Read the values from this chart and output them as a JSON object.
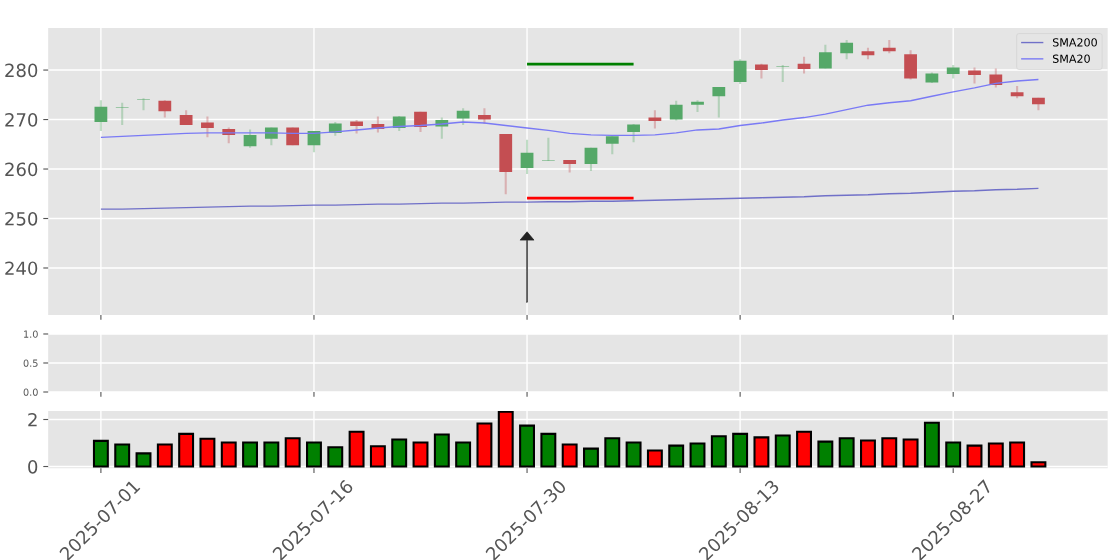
{
  "chart_data": [
    {
      "type": "candlestick",
      "categories": [
        "2025-07-01",
        null,
        null,
        null,
        null,
        null,
        null,
        null,
        null,
        null,
        "2025-07-16",
        null,
        null,
        null,
        null,
        null,
        null,
        null,
        null,
        null,
        "2025-07-30",
        null,
        null,
        null,
        null,
        null,
        null,
        null,
        null,
        null,
        "2025-08-13",
        null,
        null,
        null,
        null,
        null,
        null,
        null,
        null,
        null,
        "2025-08-27",
        null,
        null,
        null,
        null
      ],
      "ohlc": [
        [
          269.5,
          273.9,
          267.7,
          272.6
        ],
        [
          272.4,
          273.4,
          268.9,
          272.5
        ],
        [
          274.0,
          274.3,
          271.9,
          274.1
        ],
        [
          273.8,
          273.9,
          270.4,
          271.7
        ],
        [
          270.9,
          271.9,
          268.9,
          268.9
        ],
        [
          269.4,
          270.6,
          266.4,
          268.3
        ],
        [
          268.1,
          268.4,
          265.2,
          266.9
        ],
        [
          264.6,
          268.0,
          264.3,
          266.9
        ],
        [
          266.1,
          268.4,
          264.8,
          268.4
        ],
        [
          268.4,
          268.4,
          264.8,
          264.8
        ],
        [
          264.8,
          267.7,
          263.4,
          267.7
        ],
        [
          267.3,
          269.5,
          266.7,
          269.2
        ],
        [
          269.6,
          269.9,
          267.2,
          268.7
        ],
        [
          269.1,
          270.6,
          267.4,
          268.1
        ],
        [
          268.3,
          270.7,
          267.7,
          270.6
        ],
        [
          271.6,
          271.6,
          267.5,
          268.5
        ],
        [
          268.6,
          270.4,
          266.1,
          269.9
        ],
        [
          270.2,
          272.3,
          268.9,
          271.8
        ],
        [
          270.9,
          272.3,
          269.1,
          270.0
        ],
        [
          267.1,
          267.1,
          254.9,
          259.4
        ],
        [
          260.2,
          265.9,
          259.0,
          263.3
        ],
        [
          261.7,
          266.3,
          261.6,
          261.8
        ],
        [
          261.8,
          261.8,
          259.3,
          261.0
        ],
        [
          261.0,
          264.3,
          259.6,
          264.3
        ],
        [
          265.1,
          266.6,
          263.0,
          266.6
        ],
        [
          267.5,
          269.1,
          265.4,
          269.0
        ],
        [
          270.4,
          271.9,
          268.2,
          269.7
        ],
        [
          270.0,
          273.8,
          269.8,
          273.0
        ],
        [
          273.0,
          273.9,
          271.5,
          273.6
        ],
        [
          274.7,
          276.6,
          270.4,
          276.6
        ],
        [
          277.6,
          282.2,
          277.2,
          281.9
        ],
        [
          281.1,
          281.3,
          278.3,
          280.0
        ],
        [
          280.8,
          281.0,
          277.6,
          280.7
        ],
        [
          281.3,
          282.7,
          279.3,
          280.2
        ],
        [
          280.3,
          285.1,
          280.3,
          283.6
        ],
        [
          283.4,
          286.1,
          282.2,
          285.5
        ],
        [
          283.8,
          284.5,
          282.2,
          283.0
        ],
        [
          284.5,
          286.1,
          283.4,
          283.8
        ],
        [
          283.2,
          284.0,
          278.1,
          278.3
        ],
        [
          277.5,
          279.5,
          277.4,
          279.3
        ],
        [
          279.2,
          281.0,
          278.3,
          280.5
        ],
        [
          279.9,
          280.5,
          277.3,
          279.0
        ],
        [
          279.1,
          280.3,
          276.5,
          277.0
        ],
        [
          275.5,
          276.8,
          274.3,
          274.7
        ],
        [
          274.4,
          274.4,
          271.9,
          273.1
        ]
      ],
      "colors": [
        "#55a868",
        "#55a868",
        "#55a868",
        "#c44e52",
        "#c44e52",
        "#c44e52",
        "#c44e52",
        "#55a868",
        "#55a868",
        "#c44e52",
        "#55a868",
        "#55a868",
        "#c44e52",
        "#c44e52",
        "#55a868",
        "#c44e52",
        "#55a868",
        "#55a868",
        "#c44e52",
        "#c44e52",
        "#55a868",
        "#55a868",
        "#c44e52",
        "#55a868",
        "#55a868",
        "#55a868",
        "#c44e52",
        "#55a868",
        "#55a868",
        "#55a868",
        "#55a868",
        "#c44e52",
        "#55a868",
        "#c44e52",
        "#55a868",
        "#55a868",
        "#c44e52",
        "#c44e52",
        "#c44e52",
        "#55a868",
        "#55a868",
        "#c44e52",
        "#c44e52",
        "#c44e52",
        "#c44e52"
      ],
      "series": [
        {
          "type": "line",
          "name": "SMA200",
          "color": "#7070c8",
          "values": [
            251.9,
            251.9,
            252.0,
            252.1,
            252.2,
            252.3,
            252.4,
            252.5,
            252.5,
            252.6,
            252.7,
            252.7,
            252.8,
            252.9,
            252.9,
            253.0,
            253.1,
            253.1,
            253.2,
            253.3,
            253.3,
            253.4,
            253.4,
            253.5,
            253.5,
            253.6,
            253.7,
            253.8,
            253.9,
            254.0,
            254.1,
            254.2,
            254.3,
            254.4,
            254.6,
            254.7,
            254.8,
            255.0,
            255.1,
            255.3,
            255.5,
            255.6,
            255.8,
            255.9,
            256.1
          ]
        },
        {
          "type": "line",
          "name": "SMA20",
          "color": "#7a7af5",
          "values": [
            266.4,
            266.6,
            266.8,
            267.0,
            267.2,
            267.3,
            267.3,
            267.3,
            267.3,
            267.2,
            267.2,
            267.5,
            267.9,
            268.3,
            268.6,
            268.8,
            269.1,
            269.5,
            269.3,
            268.8,
            268.3,
            267.8,
            267.2,
            266.9,
            266.8,
            266.8,
            266.9,
            267.3,
            267.9,
            268.1,
            268.8,
            269.3,
            269.9,
            270.4,
            271.1,
            272.0,
            272.9,
            273.4,
            273.8,
            274.7,
            275.6,
            276.4,
            277.3,
            277.8,
            278.1
          ]
        },
        {
          "type": "line",
          "color": "#008000",
          "values": [
            null,
            null,
            null,
            null,
            null,
            null,
            null,
            null,
            null,
            null,
            null,
            null,
            null,
            null,
            null,
            null,
            null,
            null,
            null,
            null,
            281.2,
            281.2,
            281.2,
            281.2,
            281.2,
            281.2,
            null,
            null,
            null,
            null,
            null,
            null,
            null,
            null,
            null,
            null,
            null,
            null,
            null,
            null,
            null,
            null,
            null,
            null,
            null
          ]
        },
        {
          "type": "line",
          "color": "#ff0000",
          "values": [
            null,
            null,
            null,
            null,
            null,
            null,
            null,
            null,
            null,
            null,
            null,
            null,
            null,
            null,
            null,
            null,
            null,
            null,
            null,
            null,
            254.1,
            254.1,
            254.1,
            254.1,
            254.1,
            254.1,
            null,
            null,
            null,
            null,
            null,
            null,
            null,
            null,
            null,
            null,
            null,
            null,
            null,
            null,
            null,
            null,
            null,
            null,
            null
          ]
        }
      ],
      "ylim": [
        230.5,
        288.5
      ],
      "yticks": [
        240,
        250,
        260,
        270,
        280
      ],
      "grid": true,
      "legend": "top right",
      "tick_labels": "y"
    },
    {
      "type": "line",
      "categories": [
        "2025-07-01",
        null,
        null,
        null,
        null,
        null,
        null,
        null,
        null,
        null,
        "2025-07-16",
        null,
        null,
        null,
        null,
        null,
        null,
        null,
        null,
        null,
        "2025-07-30",
        null,
        null,
        null,
        null,
        null,
        null,
        null,
        null,
        null,
        "2025-08-13",
        null,
        null,
        null,
        null,
        null,
        null,
        null,
        null,
        null,
        "2025-08-27",
        null,
        null,
        null,
        null
      ],
      "ylim": [
        0,
        1
      ],
      "yticks": [
        {
          "value": 0,
          "label": "0.0"
        },
        {
          "value": 0.5,
          "label": "0.5"
        },
        {
          "value": 1,
          "label": "1.0"
        }
      ],
      "grid": true,
      "tick_labels": "y"
    },
    {
      "type": "bar",
      "categories": [
        "2025-07-01",
        null,
        null,
        null,
        null,
        null,
        null,
        null,
        null,
        null,
        "2025-07-16",
        null,
        null,
        null,
        null,
        null,
        null,
        null,
        null,
        null,
        "2025-07-30",
        null,
        null,
        null,
        null,
        null,
        null,
        null,
        null,
        null,
        "2025-08-13",
        null,
        null,
        null,
        null,
        null,
        null,
        null,
        null,
        null,
        "2025-08-27",
        null,
        null,
        null,
        null
      ],
      "values": [
        1.09,
        0.94,
        0.56,
        0.94,
        1.39,
        1.18,
        1.02,
        1.02,
        1.02,
        1.2,
        1.02,
        0.82,
        1.48,
        0.86,
        1.15,
        1.02,
        1.36,
        1.02,
        1.83,
        2.33,
        1.74,
        1.39,
        0.94,
        0.76,
        1.2,
        1.02,
        0.68,
        0.89,
        0.98,
        1.29,
        1.39,
        1.24,
        1.32,
        1.48,
        1.06,
        1.2,
        1.11,
        1.2,
        1.15,
        1.86,
        1.02,
        0.89,
        0.98,
        1.02,
        0.18
      ],
      "colors": [
        "#008000",
        "#008000",
        "#008000",
        "#ff0000",
        "#ff0000",
        "#ff0000",
        "#ff0000",
        "#008000",
        "#008000",
        "#ff0000",
        "#008000",
        "#008000",
        "#ff0000",
        "#ff0000",
        "#008000",
        "#ff0000",
        "#008000",
        "#008000",
        "#ff0000",
        "#ff0000",
        "#008000",
        "#008000",
        "#ff0000",
        "#008000",
        "#008000",
        "#008000",
        "#ff0000",
        "#008000",
        "#008000",
        "#008000",
        "#008000",
        "#ff0000",
        "#008000",
        "#ff0000",
        "#008000",
        "#008000",
        "#ff0000",
        "#ff0000",
        "#ff0000",
        "#008000",
        "#008000",
        "#ff0000",
        "#ff0000",
        "#ff0000",
        "#ff0000"
      ],
      "ylim": [
        -0.07,
        2.36
      ],
      "yticks": [
        0,
        2
      ],
      "grid": true
    }
  ]
}
